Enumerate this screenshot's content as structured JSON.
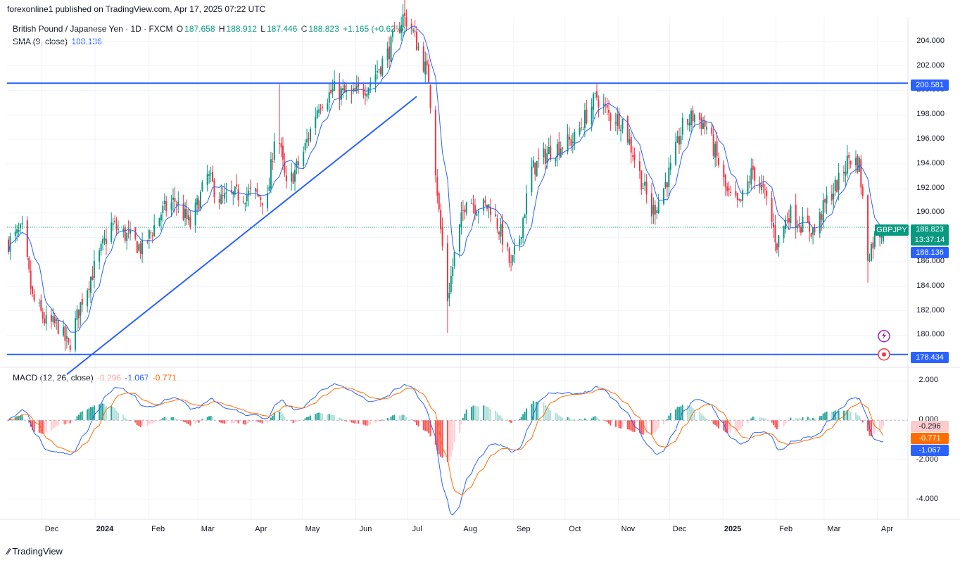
{
  "header": {
    "published": "forexonline1 published on TradingView.com, Apr 17, 2025 07:22 UTC"
  },
  "legend": {
    "instrument": "British Pound / Japanese Yen · 1D · FXCM",
    "o_label": "O",
    "o_val": "187.658",
    "h_label": "H",
    "h_val": "188.912",
    "l_label": "L",
    "l_val": "187.446",
    "c_label": "C",
    "c_val": "188.823",
    "change": "+1.165 (+0.62%)",
    "sma_label": "SMA (9, close)",
    "sma_val": "188.136"
  },
  "macd_legend": {
    "label": "MACD (12, 26, close)",
    "hist": "-0.296",
    "macd": "-1.067",
    "signal": "-0.771"
  },
  "price_tags": {
    "resistance": "200.581",
    "symbol": "GBPJPY",
    "last": "188.823",
    "countdown": "13:37:14",
    "sma": "188.136",
    "support": "178.434"
  },
  "macd_tags": {
    "hist": "-0.296",
    "signal": "-0.771",
    "macd": "-1.067"
  },
  "footer": {
    "brand": "TradingView"
  },
  "colors": {
    "up": "#089981",
    "down": "#f23645",
    "sma": "#2962ff",
    "macd": "#2962ff",
    "signal": "#ff6d00",
    "hline": "#2962ff"
  },
  "chart_data": [
    {
      "type": "candlestick",
      "title": "British Pound / Japanese Yen · 1D · FXCM",
      "y_ticks": [
        "204.000",
        "202.000",
        "200.000",
        "198.000",
        "196.000",
        "194.000",
        "192.000",
        "190.000",
        "188.000",
        "186.000",
        "184.000",
        "182.000",
        "180.000",
        "178.000"
      ],
      "ylim": [
        177.5,
        206.0
      ],
      "x_labels": [
        "Dec",
        "2024",
        "Feb",
        "Mar",
        "Apr",
        "May",
        "Jun",
        "Jul",
        "Aug",
        "Sep",
        "Oct",
        "Nov",
        "Dec",
        "2025",
        "Feb",
        "Mar",
        "Apr"
      ],
      "horizontal_lines": [
        200.581,
        178.434
      ],
      "trendline": {
        "from": [
          "2023-12-27",
          176.8
        ],
        "to": [
          "2024-07-18",
          199.5
        ]
      },
      "series": [
        {
          "name": "SMA (9, close)",
          "last": 188.136
        }
      ],
      "path_anchors": [
        [
          "Nov 23",
          187.6
        ],
        [
          "Dec 1",
          188.5
        ],
        [
          "Dec 7",
          183.0
        ],
        [
          "Dec 15",
          181.0
        ],
        [
          "Dec 22",
          180.8
        ],
        [
          "Dec 28",
          179.0
        ],
        [
          "Jan 5",
          183.0
        ],
        [
          "Jan 15",
          186.5
        ],
        [
          "Jan 22",
          189.0
        ],
        [
          "Feb 1",
          188.0
        ],
        [
          "Feb 9",
          187.0
        ],
        [
          "Feb 20",
          190.0
        ],
        [
          "Feb 28",
          191.0
        ],
        [
          "Mar 8",
          189.0
        ],
        [
          "Mar 18",
          193.0
        ],
        [
          "Mar 26",
          191.0
        ],
        [
          "Apr 5",
          191.5
        ],
        [
          "Apr 15",
          191.5
        ],
        [
          "Apr 22",
          191.0
        ],
        [
          "Apr 27",
          197.5
        ],
        [
          "May 3",
          192.0
        ],
        [
          "May 12",
          194.5
        ],
        [
          "May 22",
          199.0
        ],
        [
          "May 31",
          200.0
        ],
        [
          "Jun 10",
          199.5
        ],
        [
          "Jun 20",
          200.5
        ],
        [
          "Jul 1",
          203.0
        ],
        [
          "Jul 10",
          206.0
        ],
        [
          "Jul 14",
          205.5
        ],
        [
          "Jul 25",
          201.0
        ],
        [
          "Jul 31",
          190.0
        ],
        [
          "Aug 5",
          183.0
        ],
        [
          "Aug 9",
          186.5
        ],
        [
          "Aug 16",
          191.5
        ],
        [
          "Aug 22",
          190.5
        ],
        [
          "Aug 30",
          190.5
        ],
        [
          "Sep 6",
          188.0
        ],
        [
          "Sep 11",
          185.5
        ],
        [
          "Sep 16",
          188.0
        ],
        [
          "Sep 23",
          193.5
        ],
        [
          "Oct 3",
          195.0
        ],
        [
          "Oct 10",
          195.5
        ],
        [
          "Oct 18",
          196.0
        ],
        [
          "Oct 25",
          198.0
        ],
        [
          "Oct 31",
          199.5
        ],
        [
          "Nov 7",
          198.0
        ],
        [
          "Nov 15",
          197.5
        ],
        [
          "Nov 22",
          194.5
        ],
        [
          "Dec 2",
          190.0
        ],
        [
          "Dec 6",
          191.0
        ],
        [
          "Dec 13",
          193.5
        ],
        [
          "Dec 20",
          197.0
        ],
        [
          "Dec 27",
          198.0
        ],
        [
          "Jan 3",
          197.0
        ],
        [
          "Jan 10",
          194.0
        ],
        [
          "Jan 15",
          191.5
        ],
        [
          "Jan 22",
          190.5
        ],
        [
          "Jan 30",
          193.5
        ],
        [
          "Feb 7",
          191.0
        ],
        [
          "Feb 13",
          187.5
        ],
        [
          "Feb 20",
          190.0
        ],
        [
          "Feb 28",
          189.0
        ],
        [
          "Mar 7",
          188.5
        ],
        [
          "Mar 14",
          191.0
        ],
        [
          "Mar 21",
          192.5
        ],
        [
          "Mar 27",
          194.5
        ],
        [
          "Apr 2",
          194.0
        ],
        [
          "Apr 7",
          186.5
        ],
        [
          "Apr 11",
          188.0
        ],
        [
          "Apr 16",
          188.8
        ]
      ],
      "last_ohlc": {
        "open": 187.658,
        "high": 188.912,
        "low": 187.446,
        "close": 188.823
      }
    },
    {
      "type": "macd",
      "title": "MACD (12, 26, close)",
      "y_ticks": [
        "2.000",
        "0.000",
        "-2.000",
        "-4.000"
      ],
      "ylim": [
        -5.0,
        2.6
      ],
      "last": {
        "histogram": -0.296,
        "macd": -1.067,
        "signal": -0.771
      }
    }
  ]
}
